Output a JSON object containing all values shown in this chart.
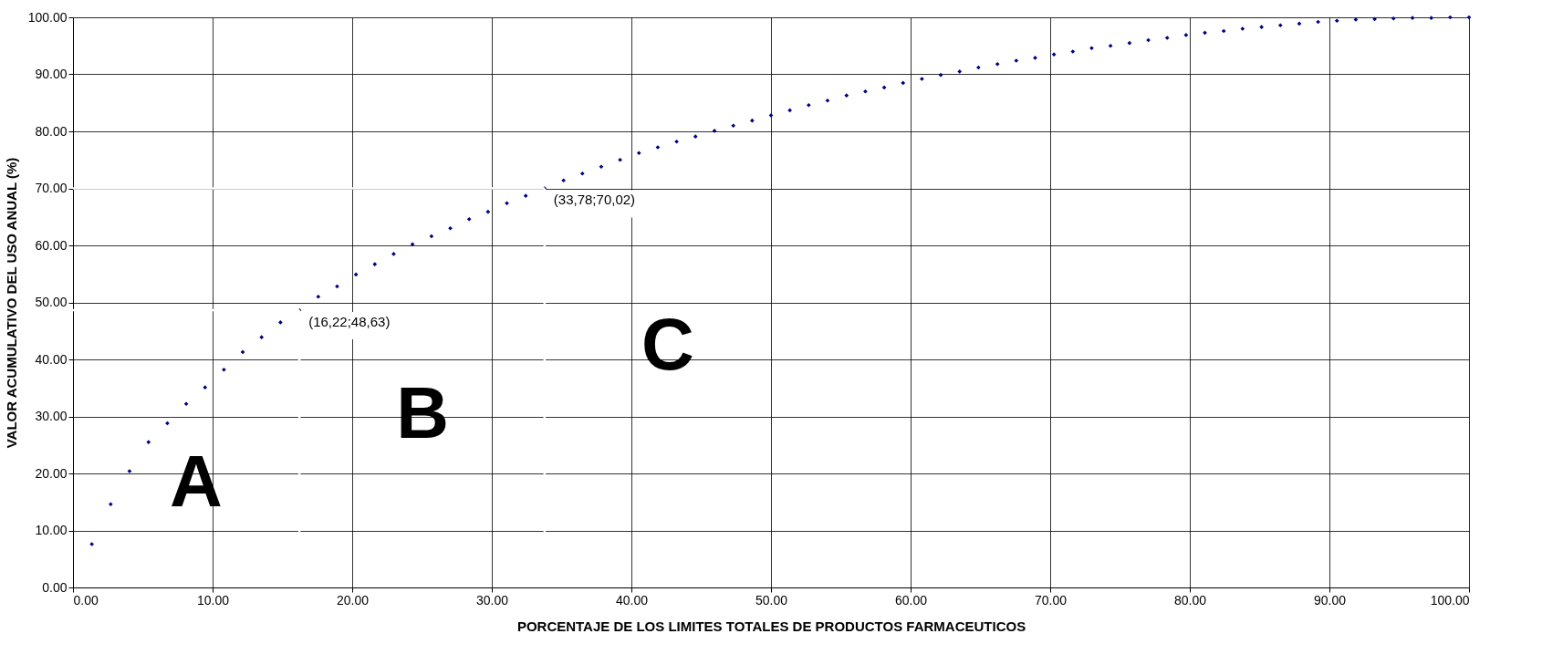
{
  "chart_data": {
    "type": "scatter",
    "xlabel": "PORCENTAJE DE LOS LIMITES TOTALES DE PRODUCTOS FARMACEUTICOS",
    "ylabel": "VALOR ACUMULATIVO DEL USO ANUAL (%)",
    "x": [
      1.35,
      2.7,
      4.05,
      5.41,
      6.76,
      8.11,
      9.46,
      10.81,
      12.16,
      13.51,
      14.86,
      16.22,
      17.57,
      18.92,
      20.27,
      21.62,
      22.97,
      24.32,
      25.68,
      27.03,
      28.38,
      29.73,
      31.08,
      32.43,
      33.78,
      35.14,
      36.49,
      37.84,
      39.19,
      40.54,
      41.89,
      43.24,
      44.59,
      45.95,
      47.3,
      48.65,
      50.0,
      51.35,
      52.7,
      54.05,
      55.41,
      56.76,
      58.11,
      59.46,
      60.81,
      62.16,
      63.51,
      64.86,
      66.22,
      67.57,
      68.92,
      70.27,
      71.62,
      72.97,
      74.32,
      75.68,
      77.03,
      78.38,
      79.73,
      81.08,
      82.43,
      83.78,
      85.14,
      86.49,
      87.84,
      89.19,
      90.54,
      91.89,
      93.24,
      94.59,
      95.95,
      97.3,
      98.65,
      100.0
    ],
    "series": [
      {
        "color": "#000080",
        "values": [
          7.6,
          14.6,
          20.4,
          25.5,
          28.8,
          32.2,
          35.1,
          38.2,
          41.3,
          43.9,
          46.5,
          48.6,
          51.0,
          52.8,
          54.9,
          56.7,
          58.5,
          60.2,
          61.6,
          63.0,
          64.6,
          65.9,
          67.4,
          68.7,
          70.0,
          71.4,
          72.6,
          73.8,
          75.0,
          76.2,
          77.2,
          78.2,
          79.1,
          80.1,
          81.0,
          81.9,
          82.8,
          83.7,
          84.6,
          85.4,
          86.3,
          87.0,
          87.7,
          88.5,
          89.2,
          89.9,
          90.5,
          91.2,
          91.8,
          92.4,
          92.9,
          93.5,
          94.0,
          94.6,
          95.0,
          95.5,
          96.0,
          96.4,
          96.9,
          97.3,
          97.6,
          98.0,
          98.3,
          98.6,
          98.9,
          99.2,
          99.4,
          99.6,
          99.7,
          99.8,
          99.9,
          99.9,
          100.0,
          100.0
        ]
      }
    ],
    "marker": "diamond",
    "xlim": [
      0,
      100
    ],
    "ylim": [
      0,
      100
    ],
    "xticks": [
      {
        "value": 0,
        "label": "0.00"
      },
      {
        "value": 10,
        "label": "10.00"
      },
      {
        "value": 20,
        "label": "20.00"
      },
      {
        "value": 30,
        "label": "30.00"
      },
      {
        "value": 40,
        "label": "40.00"
      },
      {
        "value": 50,
        "label": "50.00"
      },
      {
        "value": 60,
        "label": "60.00"
      },
      {
        "value": 70,
        "label": "70.00"
      },
      {
        "value": 80,
        "label": "80.00"
      },
      {
        "value": 90,
        "label": "90.00"
      },
      {
        "value": 100,
        "label": "100.00"
      }
    ],
    "yticks": [
      {
        "value": 0,
        "label": "0.00"
      },
      {
        "value": 10,
        "label": "10.00"
      },
      {
        "value": 20,
        "label": "20.00"
      },
      {
        "value": 30,
        "label": "30.00"
      },
      {
        "value": 40,
        "label": "40.00"
      },
      {
        "value": 50,
        "label": "50.00"
      },
      {
        "value": 60,
        "label": "60.00"
      },
      {
        "value": 70,
        "label": "70.00"
      },
      {
        "value": 80,
        "label": "80.00"
      },
      {
        "value": 90,
        "label": "90.00"
      },
      {
        "value": 100,
        "label": "100.00"
      }
    ],
    "grid": true,
    "ref_lines": [
      {
        "axis": "x",
        "value": 16.22,
        "color": "#ffffff"
      },
      {
        "axis": "y",
        "value": 48.63,
        "color": "#ffffff"
      },
      {
        "axis": "x",
        "value": 33.78,
        "color": "#ffffff"
      },
      {
        "axis": "y",
        "value": 70.02,
        "color": "#ffffff"
      }
    ],
    "annotations": [
      {
        "text": "(16,22;48,63)",
        "x": 16.22,
        "y": 48.63
      },
      {
        "text": "(33,78;70,02)",
        "x": 33.78,
        "y": 70.02
      },
      "A",
      "B",
      "C"
    ]
  }
}
